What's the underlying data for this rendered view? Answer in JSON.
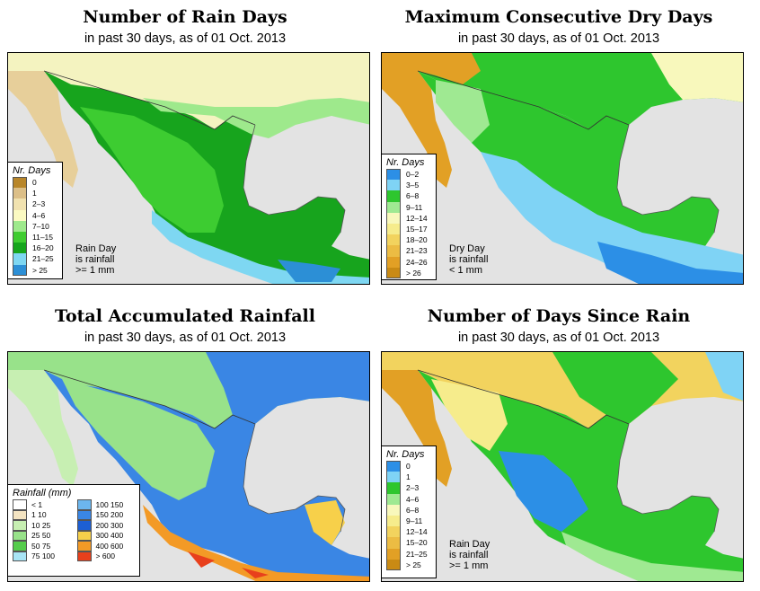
{
  "panels": [
    {
      "title": "Number of Rain Days",
      "subtitle": "in past 30 days, as of  01 Oct. 2013",
      "legend_title": "Nr. Days",
      "legend": [
        {
          "label": "0",
          "color": "#b8862a"
        },
        {
          "label": "1",
          "color": "#dcbf88"
        },
        {
          "label": "2–3",
          "color": "#f1e2b0"
        },
        {
          "label": "4–6",
          "color": "#fbfac2"
        },
        {
          "label": "7–10",
          "color": "#9ee98c"
        },
        {
          "label": "11–15",
          "color": "#3fcc30"
        },
        {
          "label": "16–20",
          "color": "#16a51c"
        },
        {
          "label": "21–25",
          "color": "#7ed7f2"
        },
        {
          "label": "> 25",
          "color": "#2c8fd6"
        }
      ],
      "note": [
        "Rain Day",
        "is rainfall",
        ">= 1 mm"
      ]
    },
    {
      "title": "Maximum Consecutive Dry Days",
      "subtitle": "in past 30 days, as of  01 Oct. 2013",
      "legend_title": "Nr. Days",
      "legend": [
        {
          "label": "0–2",
          "color": "#2c8fe6"
        },
        {
          "label": "3–5",
          "color": "#7fd3f5"
        },
        {
          "label": "6–8",
          "color": "#2ec62e"
        },
        {
          "label": "9–11",
          "color": "#9fe992"
        },
        {
          "label": "12–14",
          "color": "#f8f8bc"
        },
        {
          "label": "15–17",
          "color": "#f6ec8c"
        },
        {
          "label": "18–20",
          "color": "#f2d35e"
        },
        {
          "label": "21–23",
          "color": "#ecbc43"
        },
        {
          "label": "24–26",
          "color": "#e2a025"
        },
        {
          "label": "> 26",
          "color": "#c98a14"
        }
      ],
      "note": [
        "Dry Day",
        "is rainfall",
        "< 1 mm"
      ]
    },
    {
      "title": "Total Accumulated Rainfall",
      "subtitle": "in past 30 days, as of  01 Oct. 2013",
      "legend_title": "Rainfall (mm)",
      "legend": [
        {
          "label": "< 1",
          "color": "#ffffff"
        },
        {
          "label": "1   10",
          "color": "#f4e4c2"
        },
        {
          "label": "10   25",
          "color": "#c7efb2"
        },
        {
          "label": "25   50",
          "color": "#98e28a"
        },
        {
          "label": "50   75",
          "color": "#55cc4c"
        },
        {
          "label": "75   100",
          "color": "#a8e4f5"
        },
        {
          "label": "100   150",
          "color": "#6cb6ee"
        },
        {
          "label": "150   200",
          "color": "#3a86e4"
        },
        {
          "label": "200   300",
          "color": "#1d5fd4"
        },
        {
          "label": "300   400",
          "color": "#f7d04a"
        },
        {
          "label": "400   600",
          "color": "#f39a26"
        },
        {
          "label": "> 600",
          "color": "#e8401c"
        }
      ],
      "note": []
    },
    {
      "title": "Number of Days Since Rain",
      "subtitle": "in past 30 days, as of  01 Oct. 2013",
      "legend_title": "Nr. Days",
      "legend": [
        {
          "label": "0",
          "color": "#2c8fe6"
        },
        {
          "label": "1",
          "color": "#7fd3f5"
        },
        {
          "label": "2–3",
          "color": "#2ec62e"
        },
        {
          "label": "4–6",
          "color": "#9fe992"
        },
        {
          "label": "6–8",
          "color": "#f8f8bc"
        },
        {
          "label": "9–11",
          "color": "#f6ec8c"
        },
        {
          "label": "12–14",
          "color": "#f2d35e"
        },
        {
          "label": "15–20",
          "color": "#ecbc43"
        },
        {
          "label": "21–25",
          "color": "#e2a025"
        },
        {
          "label": "> 25",
          "color": "#c98a14"
        }
      ],
      "note": [
        "Rain Day",
        "is rainfall",
        ">= 1 mm"
      ]
    }
  ]
}
